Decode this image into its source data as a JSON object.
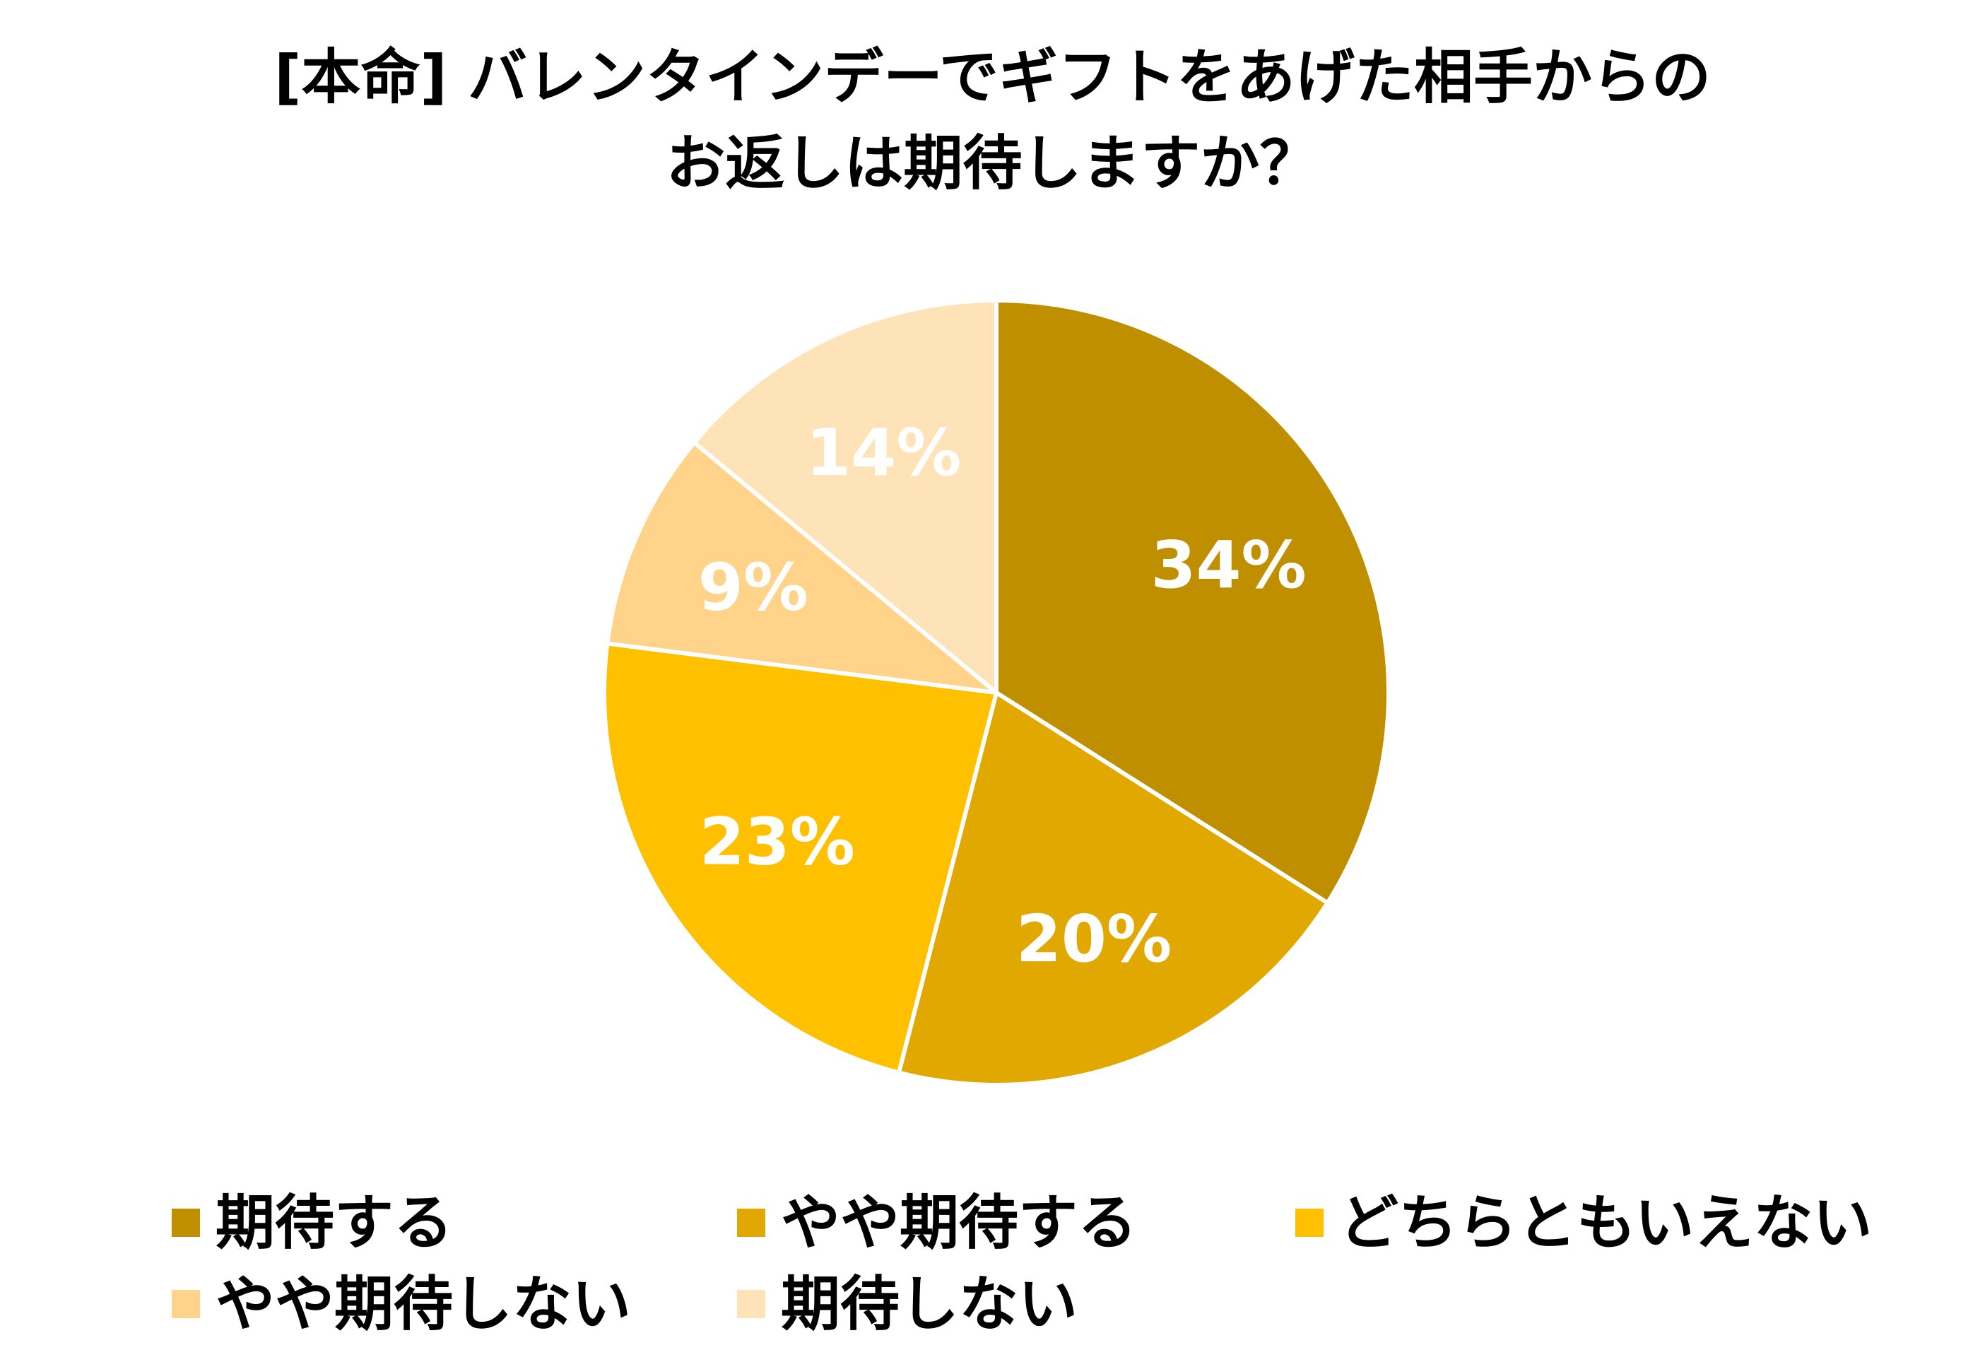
{
  "chart_data": {
    "type": "pie",
    "title_lines": [
      "[本命] バレンタインデーでギフトをあげた相手からの",
      "お返しは期待しますか？"
    ],
    "slices": [
      {
        "name": "期待する",
        "value": 34,
        "label": "34%",
        "color": "#BF8F00"
      },
      {
        "name": "やや期待する",
        "value": 20,
        "label": "20%",
        "color": "#E0A800"
      },
      {
        "name": "どちらともいえない",
        "value": 23,
        "label": "23%",
        "color": "#FFC000"
      },
      {
        "name": "やや期待しない",
        "value": 9,
        "label": "9%",
        "color": "#FFD389"
      },
      {
        "name": "期待しない",
        "value": 14,
        "label": "14%",
        "color": "#FFE3B8"
      }
    ],
    "legend_position": "bottom",
    "start_angle": "top",
    "direction": "clockwise"
  }
}
